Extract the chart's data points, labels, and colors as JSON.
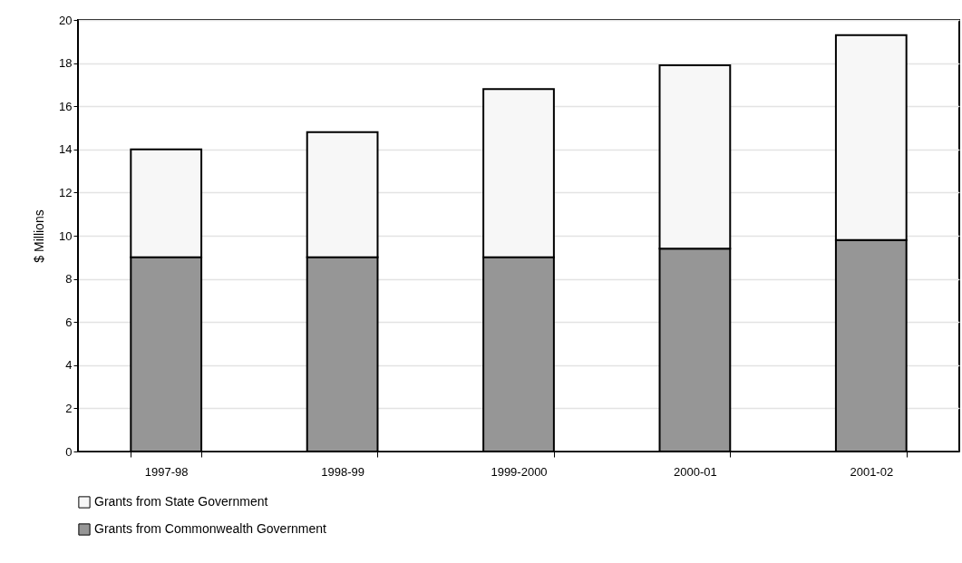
{
  "chart_data": {
    "type": "bar",
    "stacked": true,
    "ylabel": "$ Millions",
    "categories": [
      "1997-98",
      "1998-99",
      "1999-2000",
      "2000-01",
      "2001-02"
    ],
    "series": [
      {
        "name": "Grants from Commonwealth Government",
        "color": "#969696",
        "values": [
          9.0,
          9.0,
          9.0,
          9.4,
          9.8
        ]
      },
      {
        "name": "Grants from State Government",
        "color": "#f7f7f7",
        "values": [
          5.0,
          5.8,
          7.8,
          8.5,
          9.5
        ]
      }
    ],
    "ylim": [
      0,
      20
    ],
    "yticks": [
      0,
      2,
      4,
      6,
      8,
      10,
      12,
      14,
      16,
      18,
      20
    ],
    "grid": "y",
    "legend": "bottom"
  }
}
